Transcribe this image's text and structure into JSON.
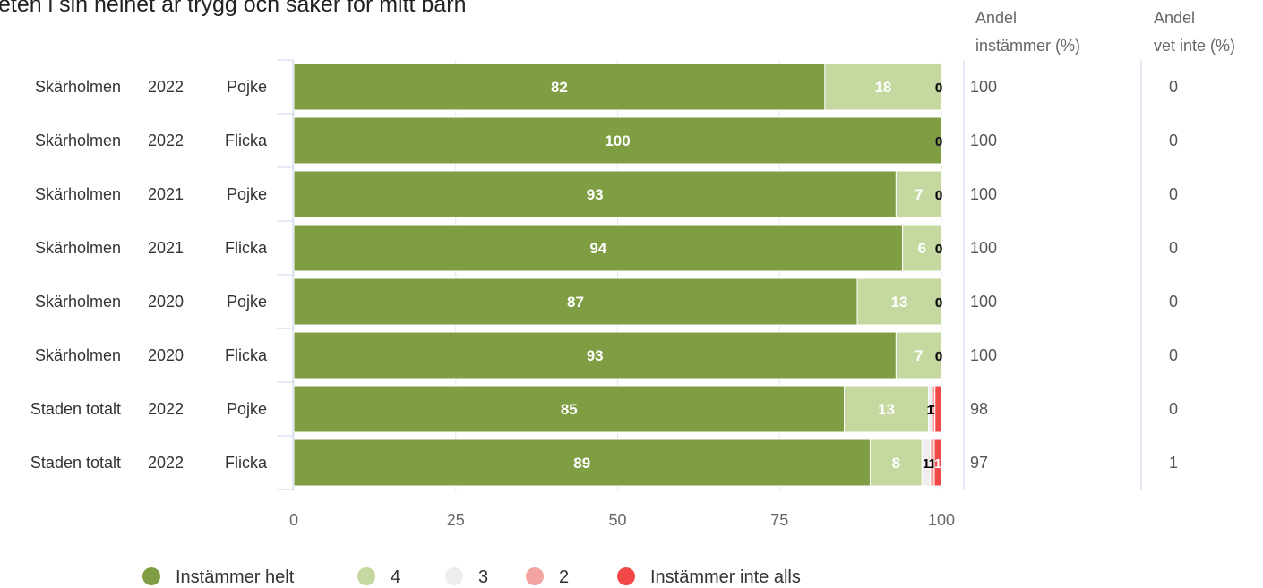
{
  "chart_data": {
    "type": "bar",
    "orientation": "horizontal",
    "stacked": true,
    "title": "eten i sin helhet är trygg och säker för mitt barn",
    "xlim": [
      0,
      100
    ],
    "x_ticks": [
      "0",
      "25",
      "50",
      "75",
      "100"
    ],
    "grid": true,
    "legend_position": "bottom",
    "rows": [
      {
        "area": "Skärholmen",
        "year": "2022",
        "gender": "Pojke",
        "share_agree": "100",
        "share_dont_know": "0"
      },
      {
        "area": "Skärholmen",
        "year": "2022",
        "gender": "Flicka",
        "share_agree": "100",
        "share_dont_know": "0"
      },
      {
        "area": "Skärholmen",
        "year": "2021",
        "gender": "Pojke",
        "share_agree": "100",
        "share_dont_know": "0"
      },
      {
        "area": "Skärholmen",
        "year": "2021",
        "gender": "Flicka",
        "share_agree": "100",
        "share_dont_know": "0"
      },
      {
        "area": "Skärholmen",
        "year": "2020",
        "gender": "Pojke",
        "share_agree": "100",
        "share_dont_know": "0"
      },
      {
        "area": "Skärholmen",
        "year": "2020",
        "gender": "Flicka",
        "share_agree": "100",
        "share_dont_know": "0"
      },
      {
        "area": "Staden totalt",
        "year": "2022",
        "gender": "Pojke",
        "share_agree": "98",
        "share_dont_know": "0"
      },
      {
        "area": "Staden totalt",
        "year": "2022",
        "gender": "Flicka",
        "share_agree": "97",
        "share_dont_know": "1"
      }
    ],
    "series": [
      {
        "name": "Instämmer helt",
        "color": "#7f9e44",
        "label_color": "#ffffff",
        "values": [
          82,
          100,
          93,
          94,
          87,
          93,
          85,
          89
        ],
        "labels": [
          "82",
          "100",
          "93",
          "94",
          "87",
          "93",
          "85",
          "89"
        ]
      },
      {
        "name": "4",
        "color": "#c5d89f",
        "label_color": "#ffffff",
        "values": [
          18,
          0,
          7,
          6,
          13,
          7,
          13,
          8
        ],
        "labels": [
          "18",
          "",
          "7",
          "6",
          "13",
          "7",
          "13",
          "8"
        ]
      },
      {
        "name": "3",
        "color": "#eeeeee",
        "label_color": "#000000",
        "values": [
          0,
          0,
          0,
          0,
          0,
          0,
          0.6,
          1.3
        ],
        "labels": [
          "0",
          "0",
          "0",
          "0",
          "0",
          "0",
          "1",
          "1"
        ]
      },
      {
        "name": "2",
        "color": "#f4a3a3",
        "label_color": "#000000",
        "values": [
          0,
          0,
          0,
          0,
          0,
          0,
          0.4,
          0.6
        ],
        "labels": [
          "",
          "",
          "",
          "",
          "",
          "",
          "0",
          "1"
        ]
      },
      {
        "name": "Instämmer inte alls",
        "color": "#f24848",
        "label_color": "#ffffff",
        "values": [
          0,
          0,
          0,
          0,
          0,
          0,
          1.0,
          1.1
        ],
        "labels": [
          "",
          "",
          "",
          "",
          "",
          "",
          "",
          "1"
        ]
      }
    ],
    "columns": {
      "agree_header_line1": "Andel",
      "agree_header_line2": "instämmer (%)",
      "dont_know_header_line1": "Andel",
      "dont_know_header_line2": "vet inte (%)"
    }
  }
}
